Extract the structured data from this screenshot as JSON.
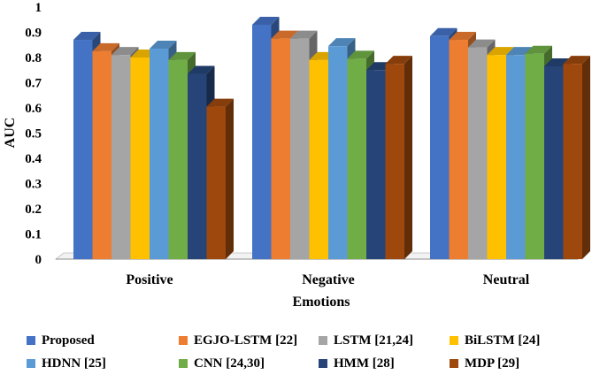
{
  "chart_data": {
    "type": "bar",
    "title": "",
    "xlabel": "Emotions",
    "ylabel": "AUC",
    "ylim": [
      0,
      1
    ],
    "yticks": [
      "0",
      "0.1",
      "0.2",
      "0.3",
      "0.4",
      "0.5",
      "0.6",
      "0.7",
      "0.8",
      "0.9",
      "1"
    ],
    "categories": [
      "Positive",
      "Negative",
      "Neutral"
    ],
    "series": [
      {
        "name": "Proposed",
        "color": "#4472C4",
        "values": [
          0.87,
          0.93,
          0.885
        ]
      },
      {
        "name": "EGJO-LSTM [22]",
        "color": "#ED7D31",
        "values": [
          0.825,
          0.875,
          0.87
        ]
      },
      {
        "name": "LSTM [21,24]",
        "color": "#A5A5A5",
        "values": [
          0.81,
          0.875,
          0.84
        ]
      },
      {
        "name": "BiLSTM [24]",
        "color": "#FFC000",
        "values": [
          0.8,
          0.79,
          0.81
        ]
      },
      {
        "name": "HDNN [25]",
        "color": "#5B9BD5",
        "values": [
          0.835,
          0.845,
          0.81
        ]
      },
      {
        "name": "CNN [24,30]",
        "color": "#70AD47",
        "values": [
          0.79,
          0.795,
          0.815
        ]
      },
      {
        "name": "HMM [28]",
        "color": "#264478",
        "values": [
          0.735,
          0.75,
          0.765
        ]
      },
      {
        "name": "MDP [29]",
        "color": "#9E480E",
        "values": [
          0.605,
          0.775,
          0.775
        ]
      }
    ]
  }
}
